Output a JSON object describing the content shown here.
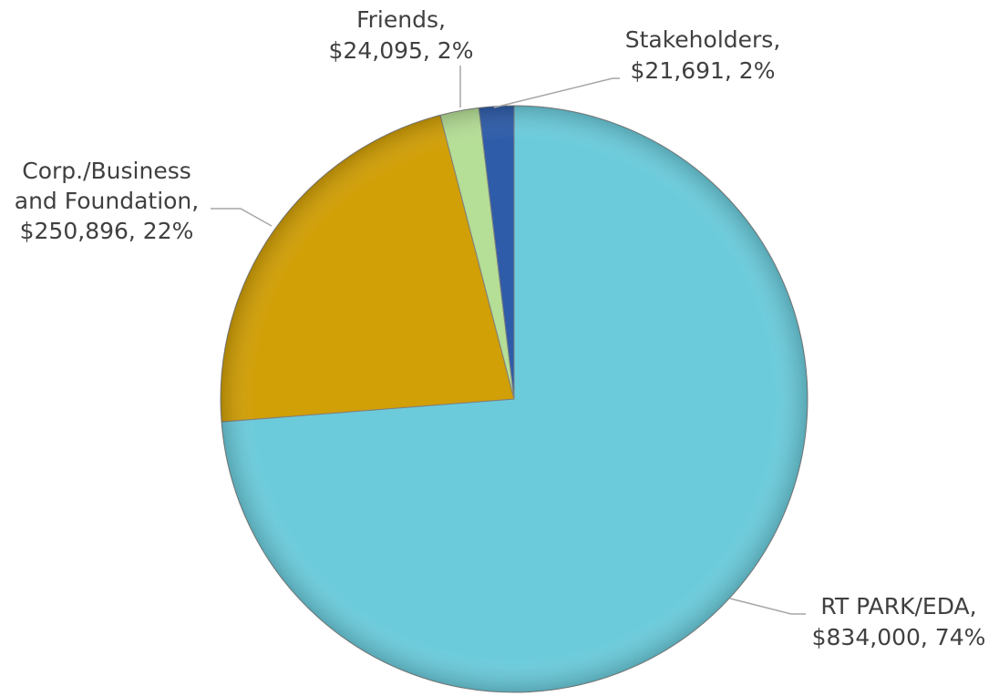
{
  "chart_data": {
    "type": "pie",
    "title": "",
    "slices": [
      {
        "name": "RT PARK/EDA",
        "value": 834000,
        "value_label": "$834,000",
        "percent_label": "74%",
        "color": "#6BCBDB"
      },
      {
        "name": "Corp./Business and Foundation",
        "value": 250896,
        "value_label": "$250,896",
        "percent_label": "22%",
        "color": "#D19F06"
      },
      {
        "name": "Friends",
        "value": 24095,
        "value_label": "$24,095",
        "percent_label": "2%",
        "color": "#B5DE96"
      },
      {
        "name": "Stakeholders",
        "value": 21691,
        "value_label": "$21,691",
        "percent_label": "2%",
        "color": "#2E5CA8"
      }
    ],
    "data_labels": {
      "rt_park": {
        "line1": "RT PARK/EDA,",
        "line2": "$834,000, 74%"
      },
      "corp": {
        "line1": "Corp./Business",
        "line2": "and Foundation,",
        "line3": "$250,896, 22%"
      },
      "friends": {
        "line1": "Friends,",
        "line2": "$24,095, 2%"
      },
      "stakeholders": {
        "line1": "Stakeholders,",
        "line2": "$21,691, 2%"
      }
    },
    "legend": "none",
    "start_angle": "12 o'clock",
    "direction": "clockwise"
  }
}
